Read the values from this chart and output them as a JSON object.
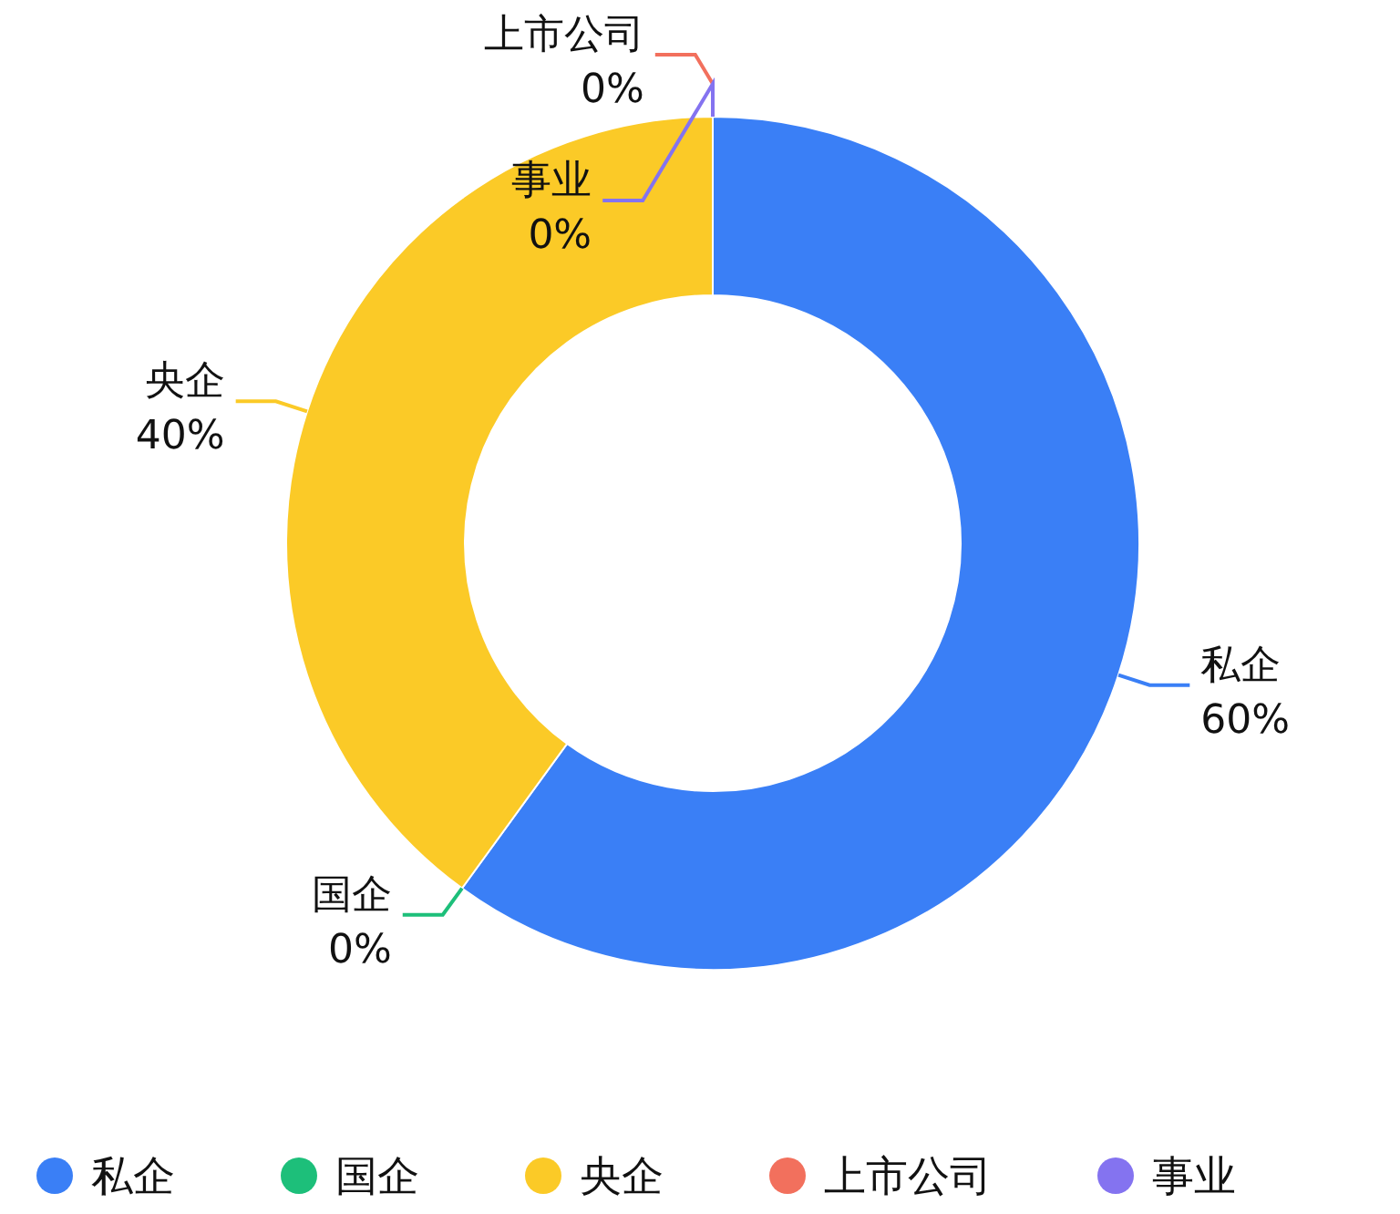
{
  "chart_data": {
    "type": "donut",
    "categories": [
      "私企",
      "国企",
      "央企",
      "上市公司",
      "事业"
    ],
    "values": [
      60,
      0,
      40,
      0,
      0
    ],
    "colors": [
      "#3a7ff6",
      "#1dbf7a",
      "#fbca27",
      "#f2705d",
      "#8473f0"
    ],
    "legend": "bottom",
    "value_labels": [
      "60%",
      "0%",
      "40%",
      "0%",
      "0%"
    ]
  }
}
